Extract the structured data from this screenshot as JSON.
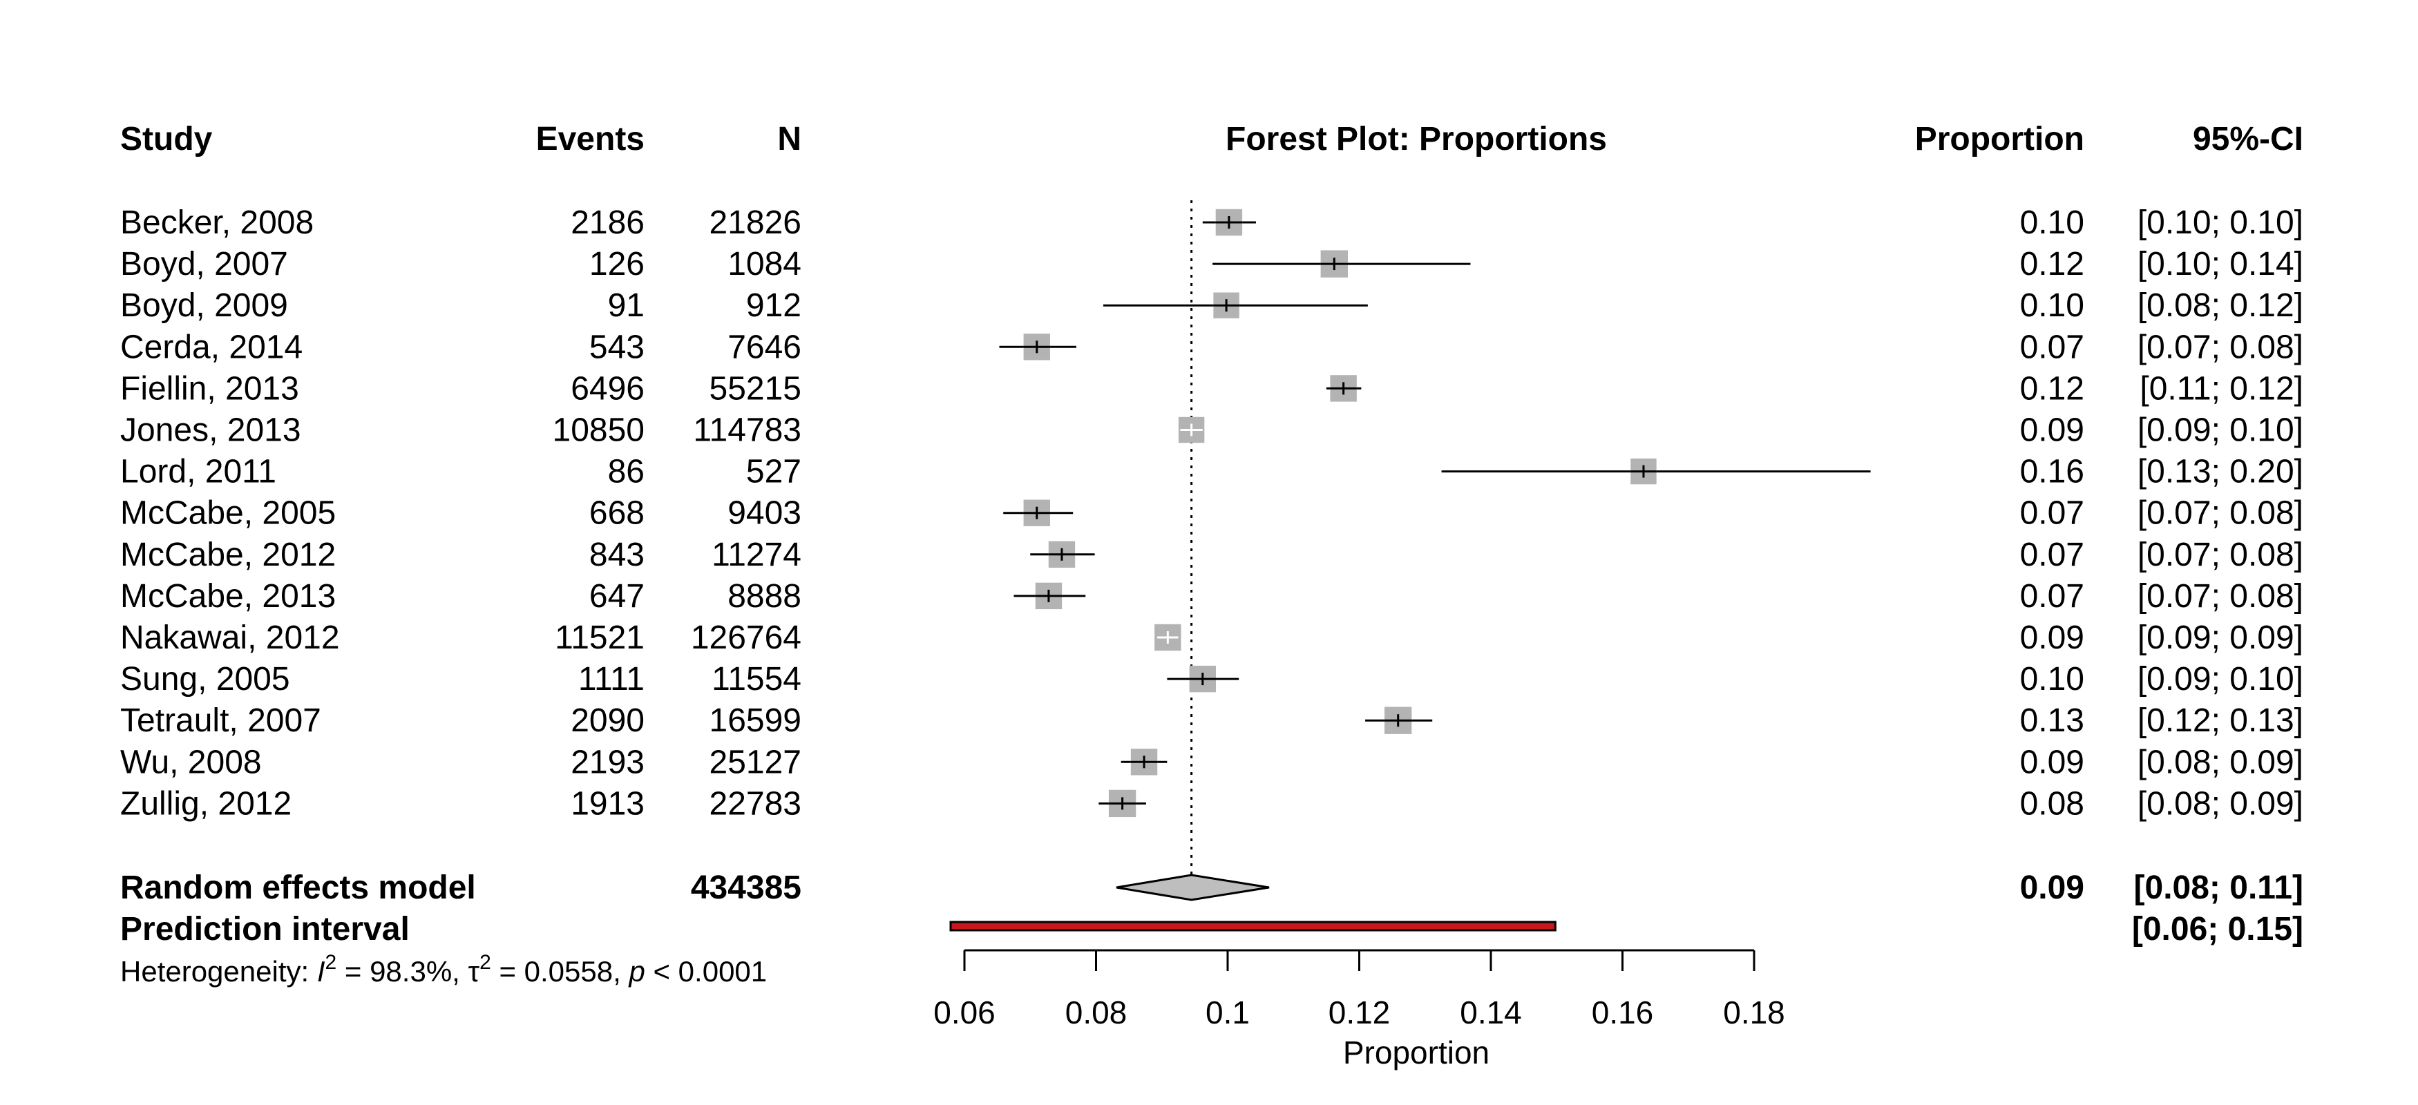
{
  "chart_data": {
    "type": "forest",
    "title": "Forest Plot: Proportions",
    "xlabel": "Proportion",
    "xlim": [
      0.06,
      0.18
    ],
    "x_ticks": [
      "0.06",
      "0.08",
      "0.1",
      "0.12",
      "0.14",
      "0.16",
      "0.18"
    ],
    "x_tick_values": [
      0.06,
      0.08,
      0.1,
      0.12,
      0.14,
      0.16,
      0.18
    ],
    "reference_line": 0.0945,
    "columns": {
      "study": "Study",
      "events": "Events",
      "n": "N",
      "proportion": "Proportion",
      "ci": "95%-CI"
    },
    "studies": [
      {
        "study": "Becker, 2008",
        "events": "2186",
        "n": "21826",
        "prop_label": "0.10",
        "ci_label": "[0.10; 0.10]",
        "est": 0.1002,
        "lo": 0.0962,
        "hi": 0.1043,
        "weight": 0.8
      },
      {
        "study": "Boyd, 2007",
        "events": "126",
        "n": "1084",
        "prop_label": "0.12",
        "ci_label": "[0.10; 0.14]",
        "est": 0.1162,
        "lo": 0.0977,
        "hi": 0.1369,
        "weight": 0.82
      },
      {
        "study": "Boyd, 2009",
        "events": "91",
        "n": "912",
        "prop_label": "0.10",
        "ci_label": "[0.08; 0.12]",
        "est": 0.0998,
        "lo": 0.0811,
        "hi": 0.1213,
        "weight": 0.78
      },
      {
        "study": "Cerda, 2014",
        "events": "543",
        "n": "7646",
        "prop_label": "0.07",
        "ci_label": "[0.07; 0.08]",
        "est": 0.071,
        "lo": 0.0653,
        "hi": 0.077,
        "weight": 0.8
      },
      {
        "study": "Fiellin, 2013",
        "events": "6496",
        "n": "55215",
        "prop_label": "0.12",
        "ci_label": "[0.11; 0.12]",
        "est": 0.1176,
        "lo": 0.115,
        "hi": 0.1203,
        "weight": 0.8
      },
      {
        "study": "Jones, 2013",
        "events": "10850",
        "n": "114783",
        "prop_label": "0.09",
        "ci_label": "[0.09; 0.10]",
        "est": 0.0945,
        "lo": 0.0928,
        "hi": 0.0962,
        "weight": 0.78
      },
      {
        "study": "Lord, 2011",
        "events": "86",
        "n": "527",
        "prop_label": "0.16",
        "ci_label": "[0.13; 0.20]",
        "est": 0.1632,
        "lo": 0.1325,
        "hi": 0.1977,
        "weight": 0.78
      },
      {
        "study": "McCabe, 2005",
        "events": "668",
        "n": "9403",
        "prop_label": "0.07",
        "ci_label": "[0.07; 0.08]",
        "est": 0.071,
        "lo": 0.0659,
        "hi": 0.0765,
        "weight": 0.8
      },
      {
        "study": "McCabe, 2012",
        "events": "843",
        "n": "11274",
        "prop_label": "0.07",
        "ci_label": "[0.07; 0.08]",
        "est": 0.0748,
        "lo": 0.07,
        "hi": 0.0798,
        "weight": 0.8
      },
      {
        "study": "McCabe, 2013",
        "events": "647",
        "n": "8888",
        "prop_label": "0.07",
        "ci_label": "[0.07; 0.08]",
        "est": 0.0728,
        "lo": 0.0675,
        "hi": 0.0784,
        "weight": 0.8
      },
      {
        "study": "Nakawai, 2012",
        "events": "11521",
        "n": "126764",
        "prop_label": "0.09",
        "ci_label": "[0.09; 0.09]",
        "est": 0.0909,
        "lo": 0.0893,
        "hi": 0.0925,
        "weight": 0.8
      },
      {
        "study": "Sung, 2005",
        "events": "1111",
        "n": "11554",
        "prop_label": "0.10",
        "ci_label": "[0.09; 0.10]",
        "est": 0.0962,
        "lo": 0.0908,
        "hi": 0.1017,
        "weight": 0.8
      },
      {
        "study": "Tetrault, 2007",
        "events": "2090",
        "n": "16599",
        "prop_label": "0.13",
        "ci_label": "[0.12; 0.13]",
        "est": 0.1259,
        "lo": 0.1209,
        "hi": 0.1311,
        "weight": 0.82
      },
      {
        "study": "Wu, 2008",
        "events": "2193",
        "n": "25127",
        "prop_label": "0.09",
        "ci_label": "[0.08; 0.09]",
        "est": 0.0873,
        "lo": 0.0838,
        "hi": 0.0908,
        "weight": 0.8
      },
      {
        "study": "Zullig, 2012",
        "events": "1913",
        "n": "22783",
        "prop_label": "0.08",
        "ci_label": "[0.08; 0.09]",
        "est": 0.084,
        "lo": 0.0804,
        "hi": 0.0876,
        "weight": 0.82
      }
    ],
    "random_effects": {
      "label": "Random effects model",
      "n": "434385",
      "prop_label": "0.09",
      "ci_label": "[0.08; 0.11]",
      "est": 0.0945,
      "lo": 0.0831,
      "hi": 0.1063
    },
    "prediction_interval": {
      "label": "Prediction interval",
      "ci_label": "[0.06; 0.15]",
      "lo": 0.0579,
      "hi": 0.1498
    },
    "heterogeneity": {
      "prefix": "Heterogeneity: ",
      "i2_symbol": "I",
      "sup2": "2",
      "i2_value": " = 98.3%, ",
      "tau_symbol": "τ",
      "tau_value": " = 0.0558, ",
      "p_symbol": "p",
      "p_value": " < 0.0001"
    },
    "colors": {
      "square": "#b3b3b3",
      "diamond": "#bebebe",
      "prediction": "#c8161d",
      "line": "#000000",
      "ci_inside": "#ffffff"
    }
  }
}
